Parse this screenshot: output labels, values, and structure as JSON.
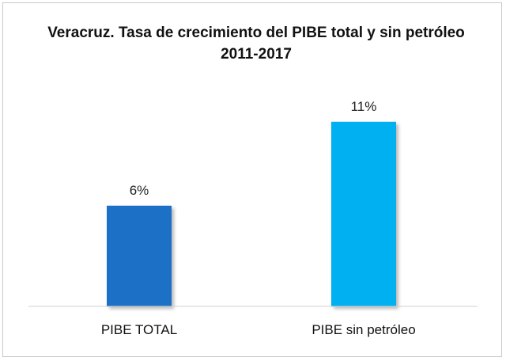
{
  "chart_data": {
    "type": "bar",
    "title": "Veracruz. Tasa de crecimiento del PIBE total y sin petróleo 2011-2017",
    "categories": [
      "PIBE TOTAL",
      "PIBE sin petróleo"
    ],
    "values": [
      6,
      11
    ],
    "data_labels": [
      "6%",
      "11%"
    ],
    "bar_colors": [
      "#1f6fc5",
      "#00b0f0"
    ],
    "ylim": [
      0,
      13
    ],
    "grid": false,
    "legend": "none",
    "xlabel": "",
    "ylabel": ""
  }
}
